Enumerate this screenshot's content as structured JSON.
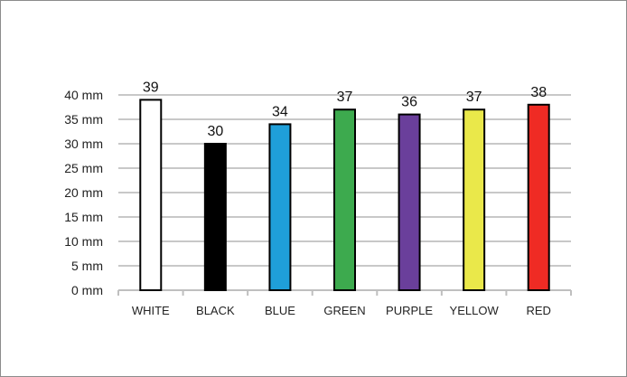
{
  "chart_data": {
    "type": "bar",
    "title": "",
    "xlabel": "",
    "ylabel": "",
    "categories": [
      "WHITE",
      "BLACK",
      "BLUE",
      "GREEN",
      "PURPLE",
      "YELLOW",
      "RED"
    ],
    "values": [
      39,
      30,
      34,
      37,
      36,
      37,
      38
    ],
    "data_labels": [
      "39",
      "30",
      "34",
      "37",
      "36",
      "37",
      "38"
    ],
    "colors": [
      "#ffffff",
      "#000000",
      "#1f9fd9",
      "#3daa4e",
      "#6a3f9b",
      "#eae84a",
      "#ef2b24"
    ],
    "ylim": [
      0,
      40
    ],
    "yticks": [
      0,
      5,
      10,
      15,
      20,
      25,
      30,
      35,
      40
    ],
    "ytick_labels": [
      "0 mm",
      "5 mm",
      "10 mm",
      "15 mm",
      "20 mm",
      "25 mm",
      "30 mm",
      "35 mm",
      "40 mm"
    ],
    "grid": true,
    "legend": "none"
  }
}
